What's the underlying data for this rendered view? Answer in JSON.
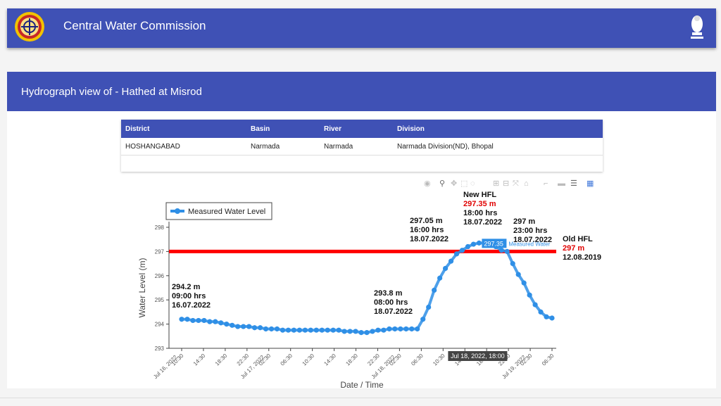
{
  "header": {
    "title": "Central Water Commission",
    "logo_icon": "cwc-logo-icon",
    "emblem_icon": "national-emblem-icon",
    "bg_color": "#3f51b5"
  },
  "page": {
    "subtitle": "Hydrograph view of - Hathed at Misrod"
  },
  "info_table": {
    "headers": [
      "District",
      "Basin",
      "River",
      "Division"
    ],
    "row": [
      "HOSHANGABAD",
      "Narmada",
      "Narmada",
      "Narmada Division(ND), Bhopal"
    ]
  },
  "modebar": {
    "icons": [
      "camera-icon",
      "zoom-icon",
      "pan-icon",
      "box-select-icon",
      "lasso-icon",
      "zoom-in-icon",
      "zoom-out-icon",
      "autoscale-icon",
      "home-icon",
      "spike-lines-icon",
      "hover-closest-icon",
      "hover-compare-icon",
      "plotly-logo-icon"
    ]
  },
  "chart_data": {
    "type": "line",
    "xlabel": "Date / Time",
    "ylabel": "Water Level (m)",
    "ylim": [
      293,
      298
    ],
    "yticks": [
      293,
      294,
      295,
      296,
      297,
      298
    ],
    "xtick_labels": [
      "10:30\nJul 16, 2022",
      "14:30",
      "18:30",
      "22:30",
      "02:30\nJul 17, 2022",
      "06:30",
      "10:30",
      "14:30",
      "18:30",
      "22:30",
      "02:30\nJul 18, 2022",
      "06:30",
      "10:30",
      "14:30",
      "18:30",
      "22:30",
      "02:30\nJul 19, 2022",
      "06:30"
    ],
    "legend": {
      "label": "Measured Water Level",
      "position": "top-left"
    },
    "series_color": "#2f8fe6",
    "hfl_color": "#ff0000",
    "series": [
      {
        "name": "Measured Water Level",
        "values": [
          294.2,
          294.2,
          294.15,
          294.15,
          294.15,
          294.1,
          294.1,
          294.05,
          294.0,
          293.95,
          293.9,
          293.9,
          293.9,
          293.85,
          293.85,
          293.8,
          293.8,
          293.8,
          293.75,
          293.75,
          293.75,
          293.75,
          293.75,
          293.75,
          293.75,
          293.75,
          293.75,
          293.75,
          293.75,
          293.7,
          293.7,
          293.7,
          293.65,
          293.65,
          293.7,
          293.75,
          293.75,
          293.8,
          293.8,
          293.8,
          293.8,
          293.8,
          293.8,
          294.2,
          294.7,
          295.4,
          295.9,
          296.3,
          296.6,
          296.9,
          297.05,
          297.2,
          297.3,
          297.35,
          297.35,
          297.3,
          297.2,
          297.05,
          297.0,
          296.5,
          296.05,
          295.7,
          295.2,
          294.8,
          294.5,
          294.3,
          294.25
        ]
      }
    ],
    "hfl_level": 297,
    "annotations": [
      {
        "lines": [
          "294.2 m",
          "09:00 hrs",
          "16.07.2022"
        ]
      },
      {
        "lines": [
          "293.8 m",
          "08:00 hrs",
          "18.07.2022"
        ]
      },
      {
        "lines": [
          "297.05 m",
          "16:00 hrs",
          "18.07.2022"
        ]
      },
      {
        "title": "New HFL",
        "value": "297.35 m",
        "lines": [
          "18:00 hrs",
          "18.07.2022"
        ]
      },
      {
        "lines": [
          "297 m",
          "23:00 hrs",
          "18.07.2022"
        ]
      },
      {
        "title": "Old HFL",
        "value": "297 m",
        "lines": [
          "12.08.2019"
        ]
      }
    ],
    "hover": {
      "value": "297.35",
      "series": "Measured Water",
      "x_label": "Jul 18, 2022, 18:00"
    }
  }
}
